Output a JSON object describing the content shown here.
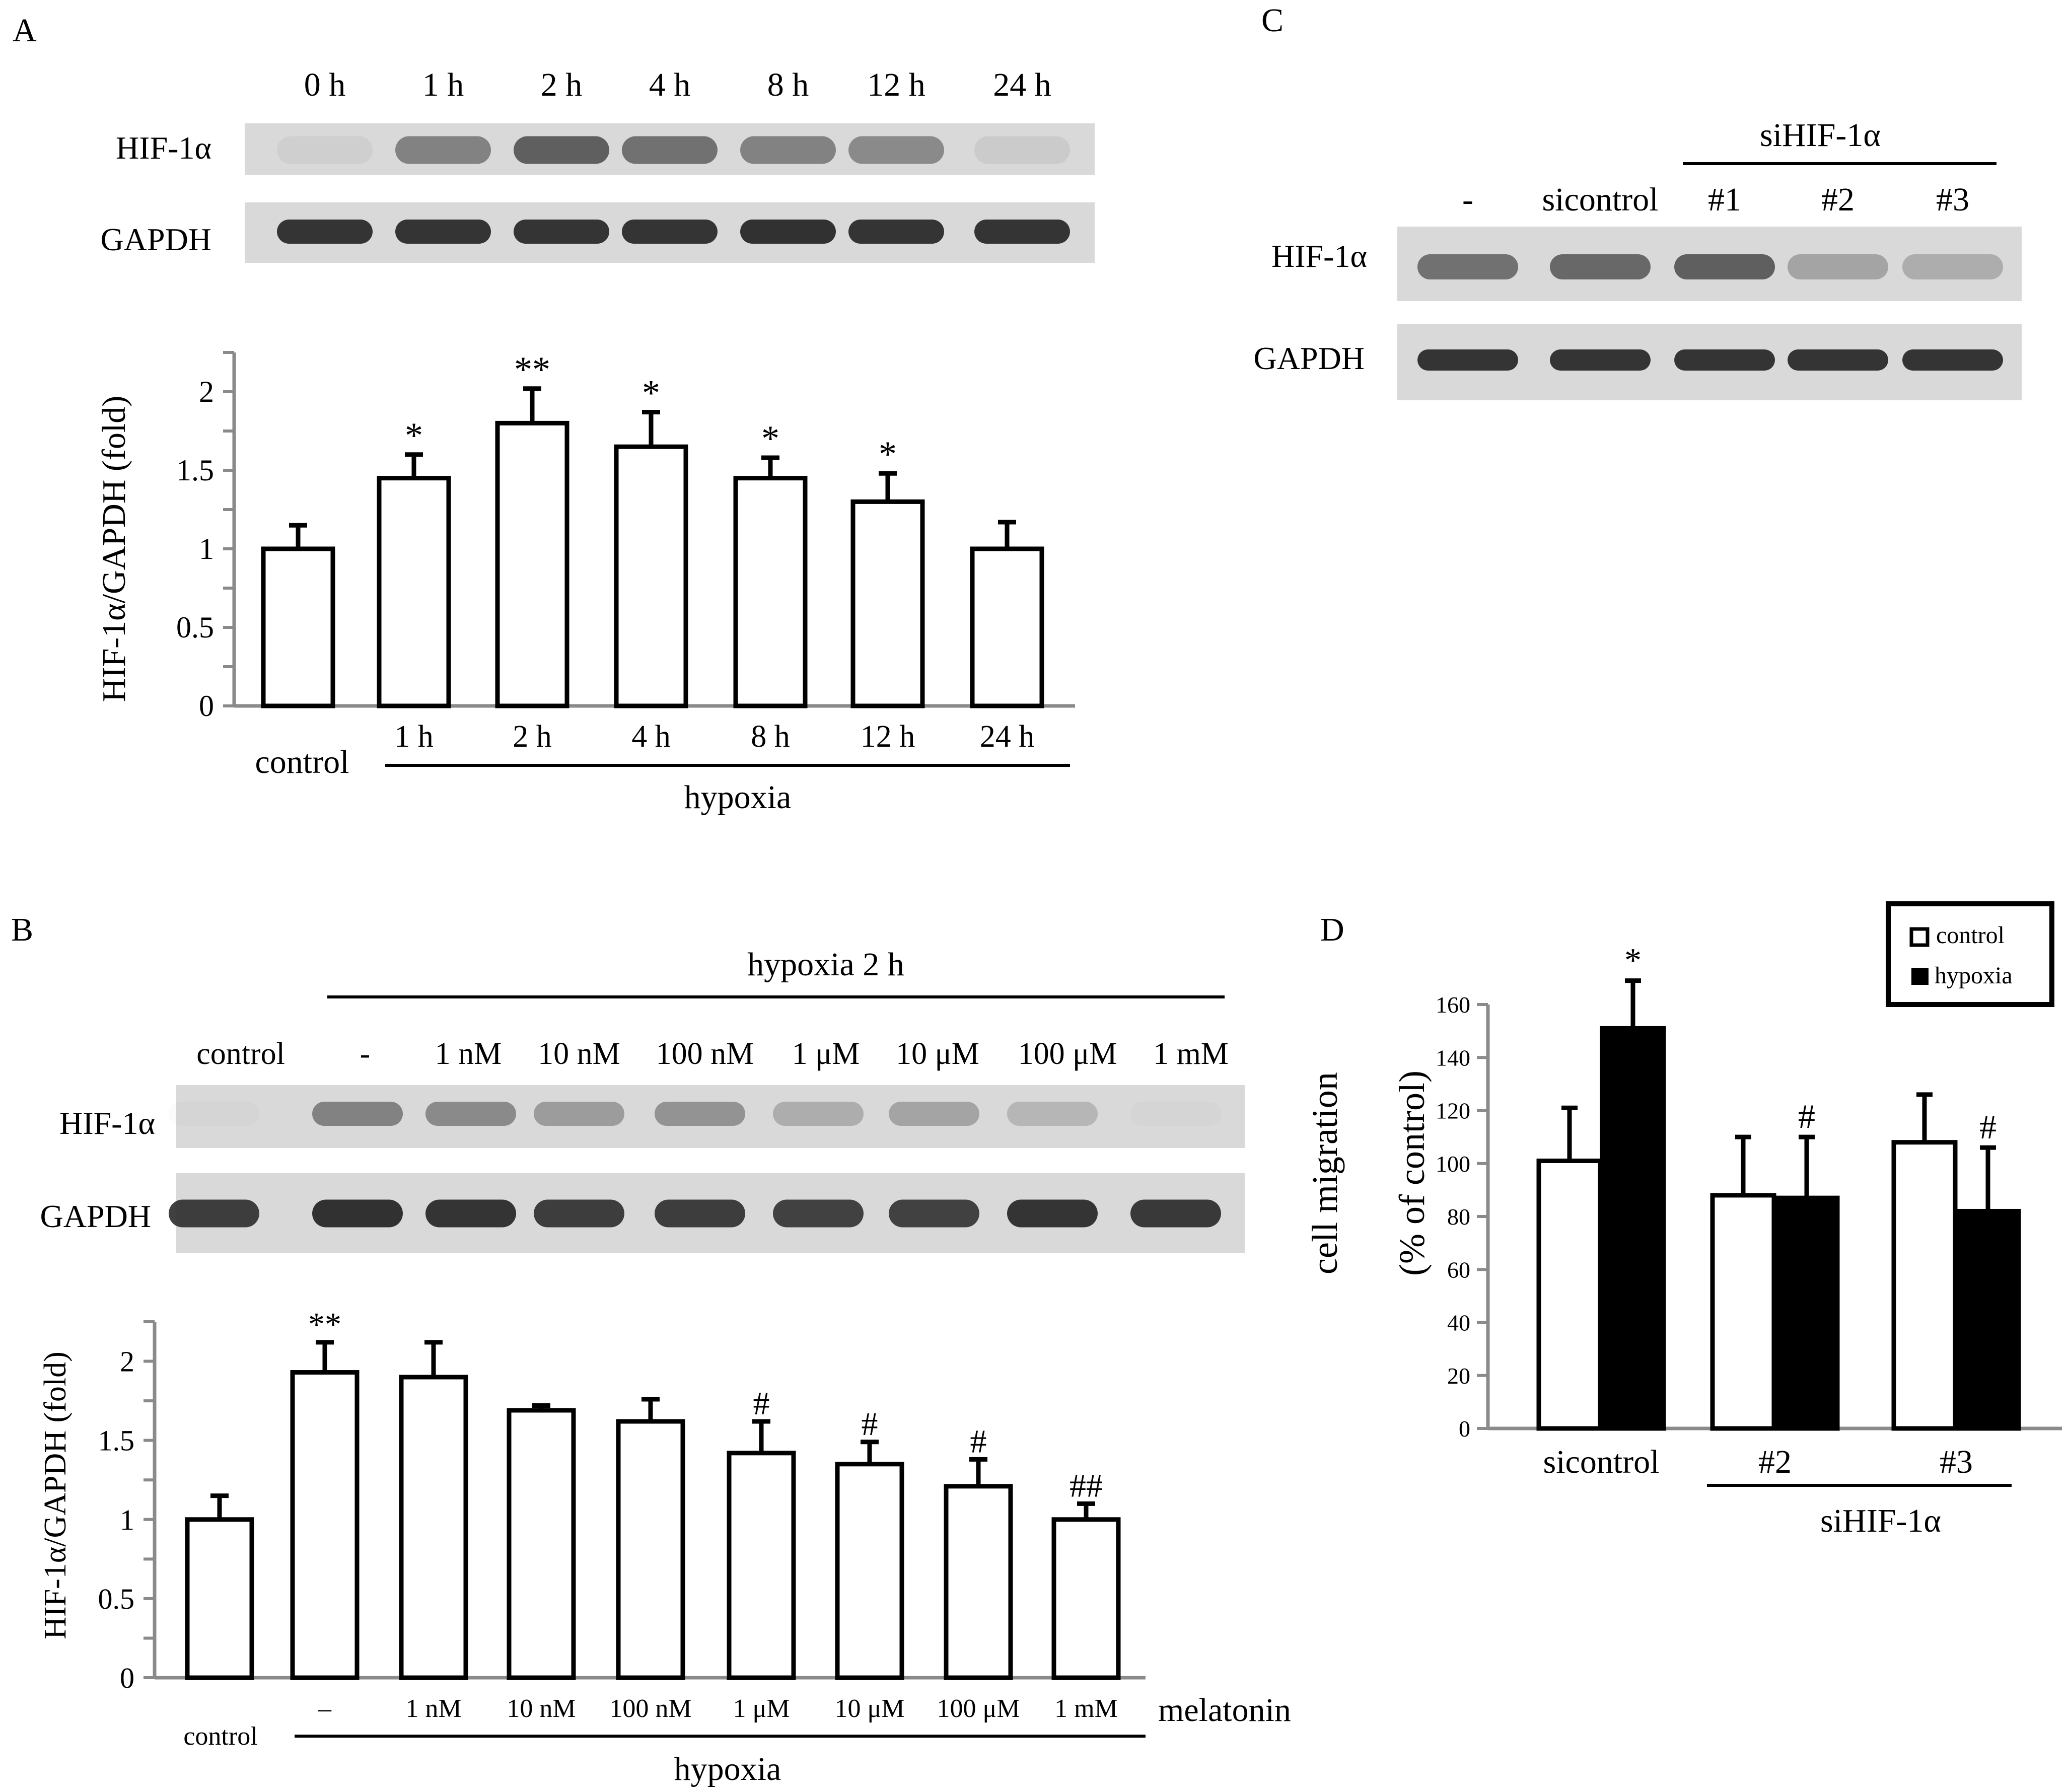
{
  "colors": {
    "bar_white": "#ffffff",
    "bar_black": "#000000",
    "axis": "#8a8a8a",
    "blot_background": "#d9d9d9",
    "band": "#2b2b2b"
  },
  "panels": {
    "A": {
      "letter": "A",
      "blot": {
        "lane_labels": [
          "0 h",
          "1 h",
          "2 h",
          "4 h",
          "8 h",
          "12 h",
          "24 h"
        ],
        "rows": [
          {
            "label": "HIF-1α",
            "intensity": [
              0.05,
              0.5,
              0.7,
              0.6,
              0.5,
              0.45,
              0.08
            ]
          },
          {
            "label": "GAPDH",
            "intensity": [
              0.95,
              0.95,
              0.95,
              0.95,
              0.97,
              0.95,
              0.95
            ]
          }
        ]
      },
      "group_caption": "hypoxia"
    },
    "B": {
      "letter": "B",
      "blot": {
        "group_label": "hypoxia 2 h",
        "lane_labels": [
          "control",
          "-",
          "1 nM",
          "10 nM",
          "100 nM",
          "1 μM",
          "10 μM",
          "100 μM",
          "1 mM"
        ],
        "rows": [
          {
            "label": "HIF-1α",
            "intensity": [
              0.02,
              0.5,
              0.45,
              0.35,
              0.4,
              0.25,
              0.3,
              0.2,
              0.02
            ]
          },
          {
            "label": "GAPDH",
            "intensity": [
              0.9,
              0.97,
              0.95,
              0.9,
              0.9,
              0.88,
              0.88,
              0.95,
              0.92
            ]
          }
        ]
      },
      "group_caption": "hypoxia",
      "treatment_label": "melatonin"
    },
    "C": {
      "letter": "C",
      "blot": {
        "group_label": "siHIF-1α",
        "lane_labels": [
          "-",
          "sicontrol",
          "#1",
          "#2",
          "#3"
        ],
        "rows": [
          {
            "label": "HIF-1α",
            "intensity": [
              0.6,
              0.65,
              0.7,
              0.3,
              0.25
            ]
          },
          {
            "label": "GAPDH",
            "intensity": [
              0.95,
              0.95,
              0.95,
              0.95,
              0.95
            ]
          }
        ]
      }
    },
    "D": {
      "letter": "D",
      "group_caption": "siHIF-1α"
    }
  },
  "chart_data": [
    {
      "id": "A",
      "type": "bar",
      "ylabel": "HIF-1α/GAPDH (fold)",
      "ylim": [
        0,
        2.25
      ],
      "yticks": [
        0,
        0.5,
        1,
        1.5,
        2
      ],
      "ytick_labels": [
        "0",
        "0.5",
        "1",
        "1.5",
        "2"
      ],
      "categories": [
        "control",
        "1 h",
        "2 h",
        "4 h",
        "8 h",
        "12 h",
        "24 h"
      ],
      "values": [
        1.0,
        1.45,
        1.8,
        1.65,
        1.45,
        1.3,
        1.0
      ],
      "errors": [
        0.15,
        0.15,
        0.22,
        0.22,
        0.13,
        0.18,
        0.17
      ],
      "annotations": [
        "",
        "*",
        "**",
        "*",
        "*",
        "*",
        ""
      ]
    },
    {
      "id": "B",
      "type": "bar",
      "ylabel": "HIF-1α/GAPDH (fold)",
      "ylim": [
        0,
        2.25
      ],
      "yticks": [
        0,
        0.5,
        1,
        1.5,
        2
      ],
      "ytick_labels": [
        "0",
        "0.5",
        "1",
        "1.5",
        "2"
      ],
      "categories": [
        "control",
        "–",
        "1 nM",
        "10 nM",
        "100 nM",
        "1 μM",
        "10 μM",
        "100 μM",
        "1 mM"
      ],
      "values": [
        1.0,
        1.93,
        1.9,
        1.69,
        1.62,
        1.42,
        1.35,
        1.21,
        1.0
      ],
      "errors": [
        0.15,
        0.19,
        0.22,
        0.03,
        0.14,
        0.2,
        0.14,
        0.17,
        0.1
      ],
      "annotations": [
        "",
        "**",
        "",
        "",
        "",
        "#",
        "#",
        "#",
        "##"
      ]
    },
    {
      "id": "D",
      "type": "bar",
      "ylabel": "cell migration",
      "ylabel2": "(% of control)",
      "ylim": [
        0,
        160
      ],
      "yticks": [
        0,
        20,
        40,
        60,
        80,
        100,
        120,
        140,
        160
      ],
      "ytick_labels": [
        "0",
        "20",
        "40",
        "60",
        "80",
        "100",
        "120",
        "140",
        "160"
      ],
      "categories": [
        "sicontrol",
        "#2",
        "#3"
      ],
      "legend": [
        "control",
        "hypoxia"
      ],
      "legend_position": "top-right",
      "series": [
        {
          "name": "control",
          "values": [
            101,
            88,
            108
          ],
          "errors": [
            20,
            22,
            18
          ],
          "annotations": [
            "",
            "",
            ""
          ]
        },
        {
          "name": "hypoxia",
          "values": [
            151,
            87,
            82
          ],
          "errors": [
            18,
            23,
            24
          ],
          "annotations": [
            "*",
            "#",
            "#"
          ]
        }
      ]
    }
  ]
}
